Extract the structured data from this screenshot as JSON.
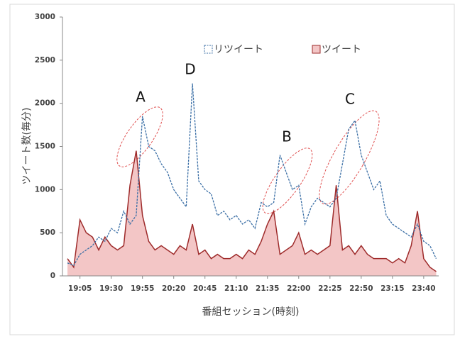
{
  "chart_data": {
    "type": "line-area",
    "ylabel": "ツイート数(毎分)",
    "xlabel": "番組セッション(時刻)",
    "xlim": [
      1131,
      1432
    ],
    "ylim": [
      0,
      3000
    ],
    "yticks": [
      0,
      500,
      1000,
      1500,
      2000,
      2500,
      3000
    ],
    "xticks": [
      {
        "value": 1145,
        "label": "19:05"
      },
      {
        "value": 1170,
        "label": "19:30"
      },
      {
        "value": 1195,
        "label": "19:55"
      },
      {
        "value": 1220,
        "label": "20:20"
      },
      {
        "value": 1245,
        "label": "20:45"
      },
      {
        "value": 1270,
        "label": "21:10"
      },
      {
        "value": 1295,
        "label": "21:35"
      },
      {
        "value": 1320,
        "label": "22:00"
      },
      {
        "value": 1345,
        "label": "22:25"
      },
      {
        "value": 1370,
        "label": "22:50"
      },
      {
        "value": 1395,
        "label": "23:15"
      },
      {
        "value": 1420,
        "label": "23:40"
      }
    ],
    "x": [
      1135,
      1140,
      1145,
      1150,
      1155,
      1160,
      1165,
      1170,
      1175,
      1180,
      1185,
      1190,
      1195,
      1200,
      1205,
      1210,
      1215,
      1220,
      1225,
      1230,
      1235,
      1240,
      1245,
      1250,
      1255,
      1260,
      1265,
      1270,
      1275,
      1280,
      1285,
      1290,
      1295,
      1300,
      1305,
      1310,
      1315,
      1320,
      1325,
      1330,
      1335,
      1340,
      1345,
      1350,
      1355,
      1360,
      1365,
      1370,
      1375,
      1380,
      1385,
      1390,
      1395,
      1400,
      1405,
      1410,
      1415,
      1420,
      1425,
      1430
    ],
    "series": [
      {
        "name": "リツイート",
        "color": "#3a6ea5",
        "style": "dashed-line",
        "values": [
          150,
          120,
          250,
          300,
          350,
          450,
          400,
          550,
          500,
          750,
          600,
          700,
          1850,
          1500,
          1450,
          1300,
          1200,
          1000,
          900,
          800,
          2230,
          1100,
          1000,
          950,
          700,
          750,
          650,
          700,
          600,
          650,
          550,
          850,
          800,
          850,
          1400,
          1200,
          1000,
          1050,
          600,
          800,
          900,
          850,
          800,
          900,
          1300,
          1700,
          1800,
          1400,
          1200,
          1000,
          1100,
          700,
          600,
          550,
          500,
          450,
          600,
          400,
          350,
          200
        ]
      },
      {
        "name": "ツイート",
        "color": "#9e2b2b",
        "fill": "#f3c6c6",
        "style": "area",
        "values": [
          200,
          100,
          650,
          500,
          450,
          300,
          450,
          350,
          300,
          350,
          1050,
          1450,
          700,
          400,
          300,
          350,
          300,
          250,
          350,
          300,
          600,
          250,
          300,
          200,
          250,
          200,
          200,
          250,
          200,
          300,
          250,
          400,
          600,
          750,
          250,
          300,
          350,
          500,
          250,
          300,
          250,
          300,
          350,
          1050,
          300,
          350,
          250,
          350,
          250,
          200,
          200,
          200,
          150,
          200,
          150,
          350,
          750,
          200,
          100,
          50
        ]
      }
    ],
    "annotations": [
      "A",
      "D",
      "B",
      "C"
    ]
  }
}
